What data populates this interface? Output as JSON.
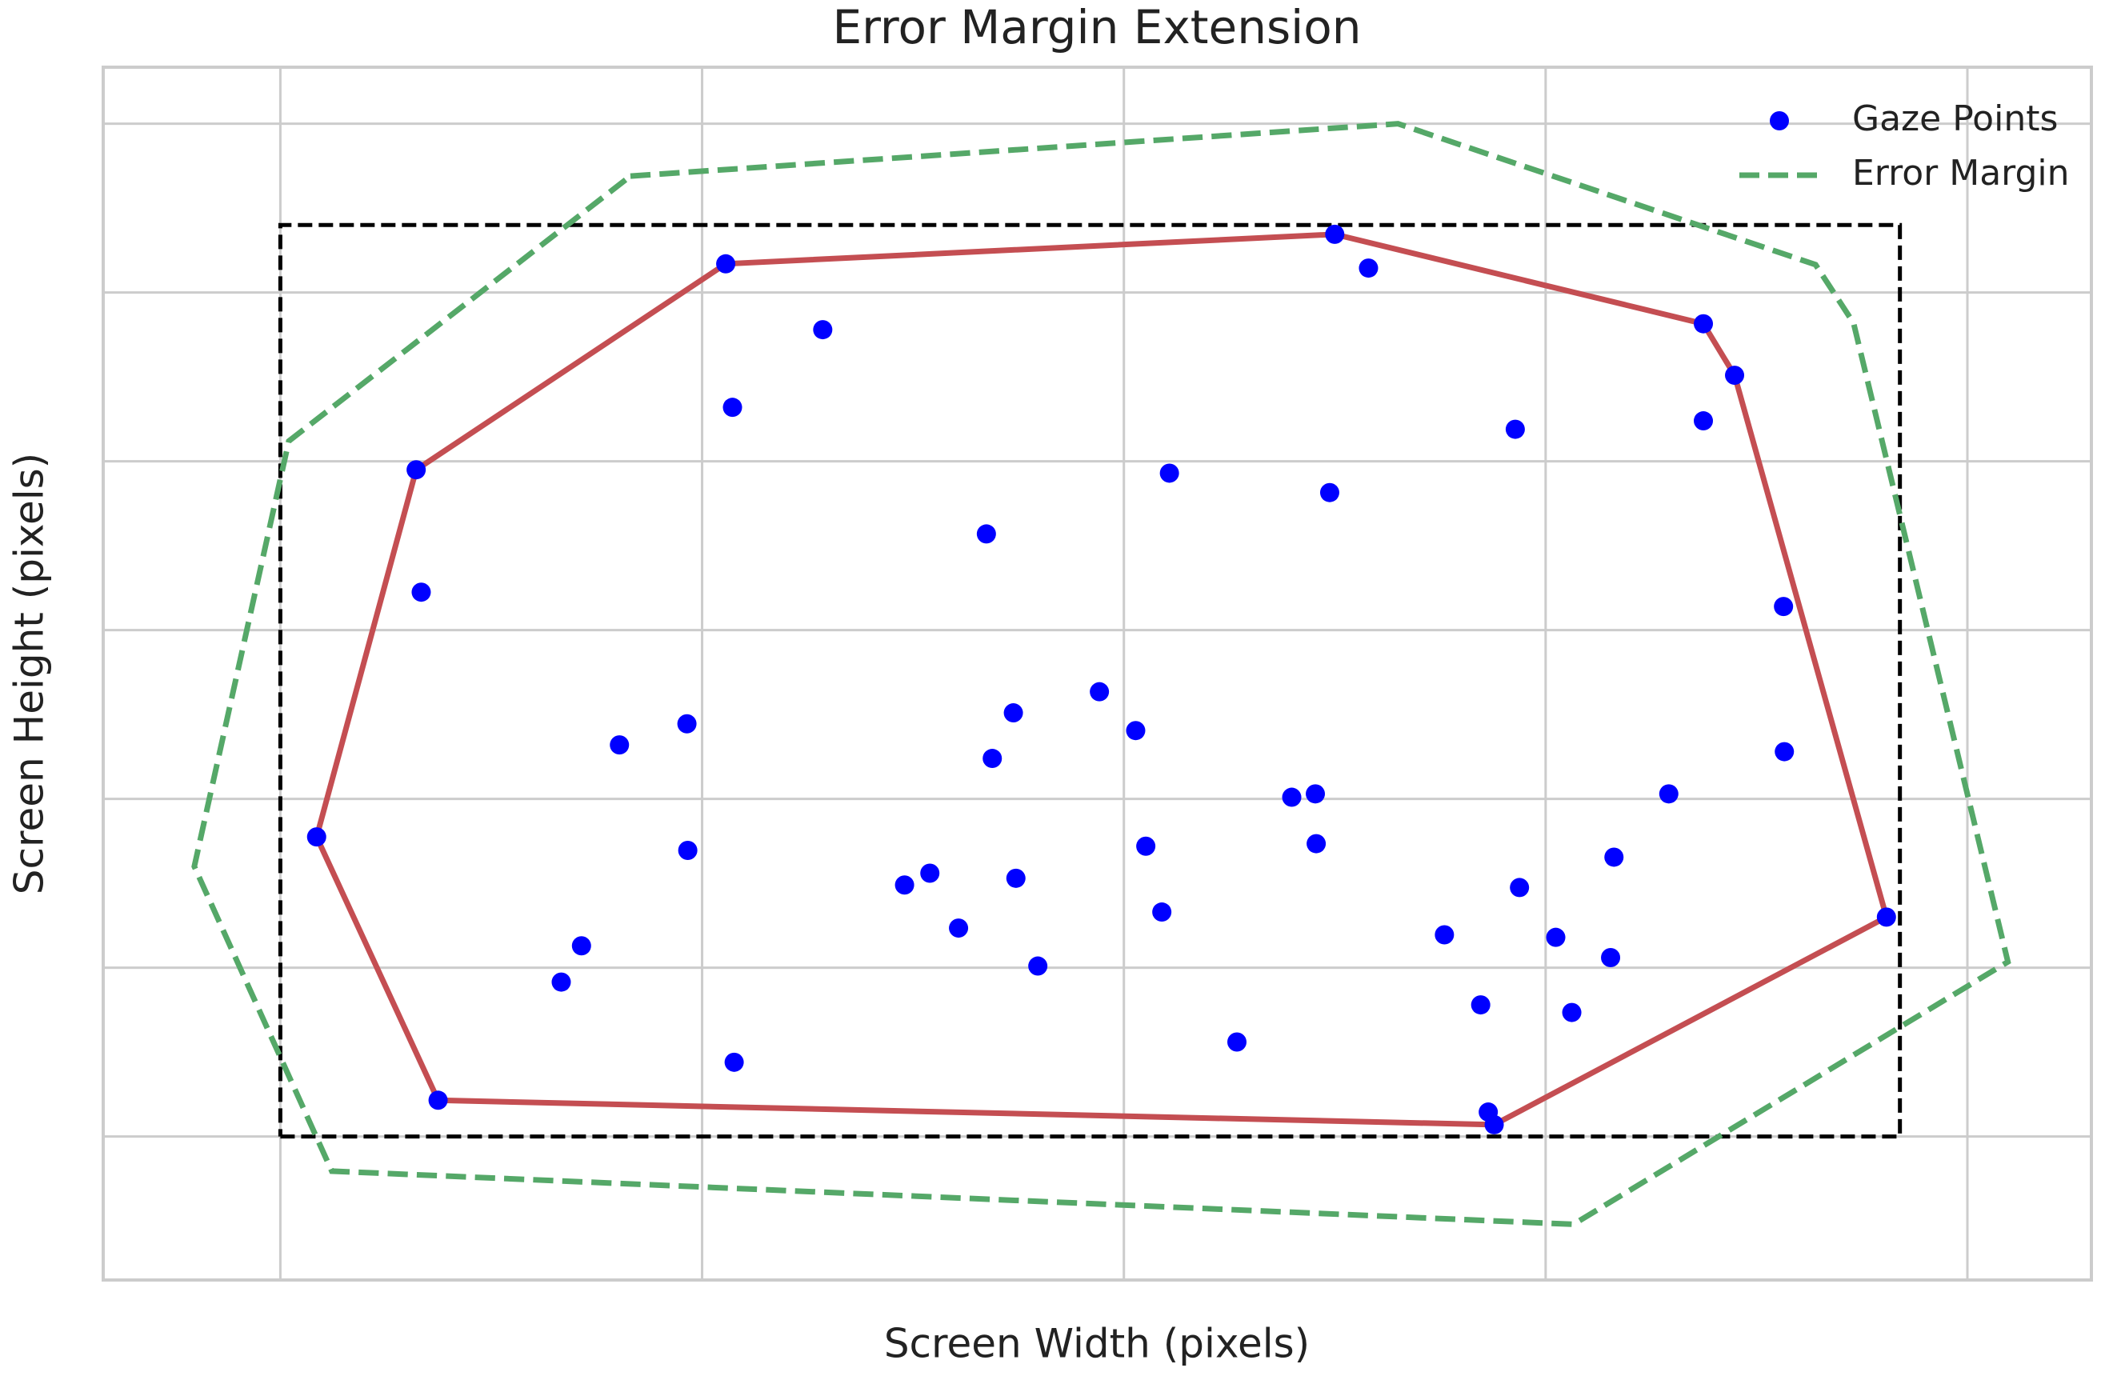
{
  "chart_data": {
    "type": "scatter",
    "title": "Error Margin Extension",
    "xlabel": "Screen Width (pixels)",
    "ylabel": "Screen Height (pixels)",
    "xlim": [
      -210,
      2147
    ],
    "ylim": [
      -170,
      1267
    ],
    "xticks": [
      0,
      500,
      1000,
      1500,
      2000
    ],
    "yticks": [
      0,
      200,
      400,
      600,
      800,
      1000,
      1200
    ],
    "grid": true,
    "legend_loc": "upper right",
    "series": [
      {
        "name": "Gaze Points",
        "kind": "scatter",
        "color": "#0000ff",
        "x": [
          528,
          643,
          536,
          1250,
          1290,
          1687,
          1724,
          1687,
          1464,
          161,
          1054,
          1244,
          837,
          167,
          1782,
          971,
          869,
          1014,
          482,
          402,
          844,
          1783,
          1199,
          1227,
          1646,
          43,
          483,
          1026,
          1228,
          1581,
          740,
          770,
          872,
          1469,
          1045,
          804,
          1380,
          1512,
          1904,
          357,
          1577,
          898,
          333,
          1423,
          1531,
          1134,
          538,
          187,
          1432,
          1439
        ],
        "values": [
          1034,
          956,
          864,
          1069,
          1029,
          963,
          902,
          848,
          838,
          790,
          786,
          763,
          714,
          645,
          628,
          527,
          502,
          481,
          489,
          464,
          448,
          456,
          402,
          406,
          406,
          355,
          339,
          344,
          347,
          331,
          298,
          312,
          306,
          295,
          266,
          247,
          239,
          236,
          260,
          226,
          212,
          202,
          183,
          156,
          147,
          112,
          88,
          43,
          29,
          14
        ]
      },
      {
        "name": "Error Margin",
        "kind": "line",
        "dashed": true,
        "color": "#55a868",
        "x": [
          415,
          1325,
          1820,
          1865,
          2048,
          1533,
          61,
          -102,
          10,
          415
        ],
        "values": [
          1138,
          1200,
          1033,
          964,
          207,
          -104,
          -41,
          320,
          824,
          1138
        ]
      }
    ],
    "hull": {
      "color": "#c44e52",
      "x": [
        528,
        1250,
        1687,
        1724,
        1904,
        1439,
        187,
        43,
        161,
        528
      ],
      "values": [
        1034,
        1069,
        963,
        902,
        260,
        14,
        43,
        355,
        790,
        1034
      ]
    },
    "screen": {
      "color": "#000000",
      "dashed": true,
      "x": [
        0,
        1920,
        1920,
        0,
        0
      ],
      "values": [
        0,
        0,
        1080,
        1080,
        0
      ]
    }
  }
}
